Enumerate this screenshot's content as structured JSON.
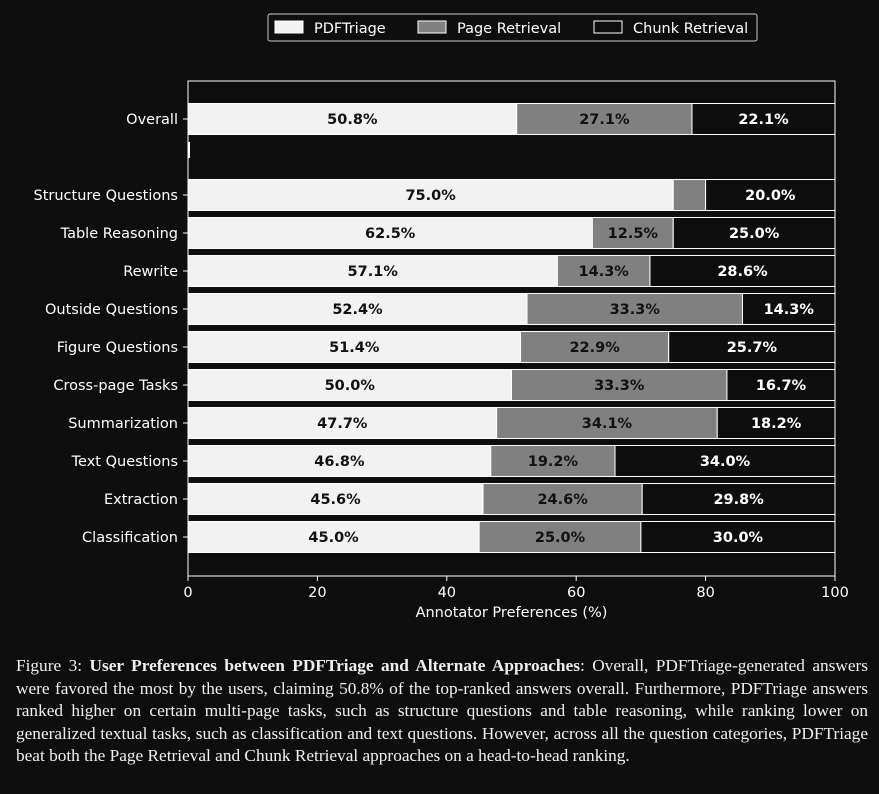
{
  "chart_data": {
    "type": "bar",
    "orientation": "horizontal",
    "stacked": true,
    "title": "",
    "xlabel": "Annotator Preferences (%)",
    "ylabel": "",
    "xlim": [
      0,
      100
    ],
    "xticks": [
      0,
      20,
      40,
      60,
      80,
      100
    ],
    "legend": "top-center",
    "grid": false,
    "categories": [
      "Overall",
      "Structure Questions",
      "Table Reasoning",
      "Rewrite",
      "Outside Questions",
      "Figure Questions",
      "Cross-page Tasks",
      "Summarization",
      "Text Questions",
      "Extraction",
      "Classification"
    ],
    "series": [
      {
        "name": "PDFTriage",
        "color": "#f2f2f2",
        "label_color": "#111111",
        "values": [
          50.8,
          75.0,
          62.5,
          57.1,
          52.4,
          51.4,
          50.0,
          47.7,
          46.8,
          45.6,
          45.0
        ],
        "labels": [
          "50.8%",
          "75.0%",
          "62.5%",
          "57.1%",
          "52.4%",
          "51.4%",
          "50.0%",
          "47.7%",
          "46.8%",
          "45.6%",
          "45.0%"
        ]
      },
      {
        "name": "Page Retrieval",
        "color": "#808080",
        "label_color": "#111111",
        "values": [
          27.1,
          5.0,
          12.5,
          14.3,
          33.3,
          22.9,
          33.3,
          34.1,
          19.2,
          24.6,
          25.0
        ],
        "labels": [
          "27.1%",
          "",
          "12.5%",
          "14.3%",
          "33.3%",
          "22.9%",
          "33.3%",
          "34.1%",
          "19.2%",
          "24.6%",
          "25.0%"
        ]
      },
      {
        "name": "Chunk Retrieval",
        "color": "#0e0e0e",
        "label_color": "#ffffff",
        "values": [
          22.1,
          20.0,
          25.0,
          28.6,
          14.3,
          25.7,
          16.7,
          18.2,
          34.0,
          29.8,
          30.0
        ],
        "labels": [
          "22.1%",
          "20.0%",
          "25.0%",
          "28.6%",
          "14.3%",
          "25.7%",
          "16.7%",
          "18.2%",
          "34.0%",
          "29.8%",
          "30.0%"
        ]
      }
    ]
  },
  "caption": {
    "prefix": "Figure 3: ",
    "bold": "User Preferences between PDFTriage and Alternate Approaches",
    "body": ": Overall, PDFTriage-generated answers were favored the most by the users, claiming 50.8% of the top-ranked answers overall. Furthermore, PDFTriage answers ranked higher on certain multi-page tasks, such as structure questions and table reasoning, while ranking lower on generalized textual tasks, such as classification and text questions. However, across all the question categories, PDFTriage beat both the Page Retrieval and Chunk Retrieval approaches on a head-to-head ranking."
  }
}
